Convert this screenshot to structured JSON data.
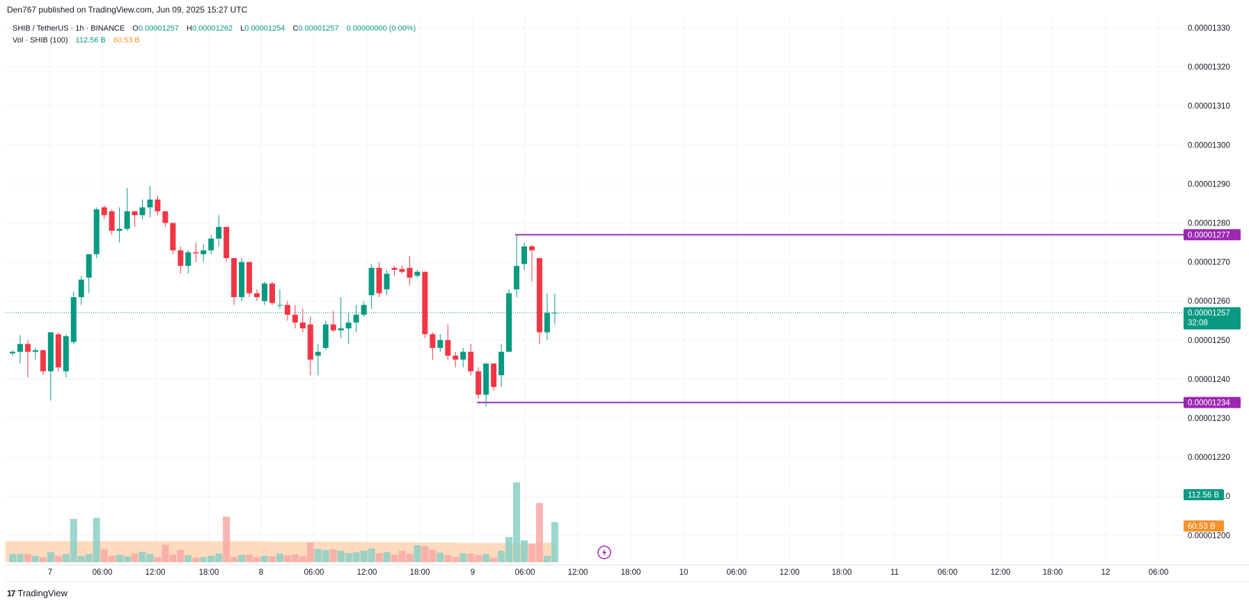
{
  "header": {
    "published_text": "Den767 published on TradingView.com, Jun 09, 2025 15:27 UTC"
  },
  "legend": {
    "symbol": "SHIB / TetherUS · 1h · BINANCE",
    "o_label": "O",
    "o_value": "0.00001257",
    "h_label": "H",
    "h_value": "0.00001262",
    "l_label": "L",
    "l_value": "0.00001254",
    "c_label": "C",
    "c_value": "0.00001257",
    "change": "0.00000000 (0.00%)",
    "vol_label": "Vol · SHIB (100)",
    "vol_value": "112.56 B",
    "vol_ma_value": "60.53 B"
  },
  "brand": {
    "name": "TradingView",
    "logo_glyph": "17"
  },
  "colors": {
    "up": "#089981",
    "down": "#f23645",
    "up_vol": "#8bcfc6",
    "down_vol": "#f7a9a7",
    "vol_ma_fill": "#ffcfa8",
    "level": "#9c27b0",
    "grid": "#f0f3fa",
    "last_price_tag": "#089981",
    "vol_ma_tag": "#f7922b",
    "bolt_icon": "#9c27b0"
  },
  "icons": {
    "bolt": "lightning-bolt-icon"
  },
  "chart_data": {
    "type": "candlestick",
    "symbol": "SHIB / TetherUS",
    "interval": "1h",
    "exchange": "BINANCE",
    "x_axis_labels": [
      "7",
      "06:00",
      "12:00",
      "18:00",
      "8",
      "06:00",
      "12:00",
      "18:00",
      "9",
      "06:00",
      "12:00",
      "18:00",
      "10",
      "06:00",
      "12:00",
      "18:00",
      "11",
      "06:00",
      "12:00",
      "18:00",
      "12",
      "06:00"
    ],
    "y_axis_labels": [
      "0.00001330",
      "0.00001320",
      "0.00001310",
      "0.00001300",
      "0.00001290",
      "0.00001280",
      "0.00001270",
      "0.00001260",
      "0.00001250",
      "0.00001240",
      "0.00001230",
      "0.00001220",
      "0.00001210",
      "0.00001200"
    ],
    "ylim": [
      1.19e-05,
      1.33e-05
    ],
    "grid": true,
    "candles": [
      {
        "o": 1.2466e-05,
        "h": 1.2474e-05,
        "l": 1.246e-05,
        "c": 1.247e-05,
        "v": 18
      },
      {
        "o": 1.247e-05,
        "h": 1.2513e-05,
        "l": 1.244e-05,
        "c": 1.249e-05,
        "v": 18
      },
      {
        "o": 1.249e-05,
        "h": 1.25e-05,
        "l": 1.2405e-05,
        "c": 1.247e-05,
        "v": 18
      },
      {
        "o": 1.247e-05,
        "h": 1.248e-05,
        "l": 1.245e-05,
        "c": 1.2474e-05,
        "v": 14
      },
      {
        "o": 1.2474e-05,
        "h": 1.2475e-05,
        "l": 1.241e-05,
        "c": 1.242e-05,
        "v": 11
      },
      {
        "o": 1.242e-05,
        "h": 1.252e-05,
        "l": 1.2345e-05,
        "c": 1.252e-05,
        "v": 22
      },
      {
        "o": 1.2515e-05,
        "h": 1.252e-05,
        "l": 1.242e-05,
        "c": 1.243e-05,
        "v": 14
      },
      {
        "o": 1.242e-05,
        "h": 1.2515e-05,
        "l": 1.2405e-05,
        "c": 1.251e-05,
        "v": 18
      },
      {
        "o": 1.2495e-05,
        "h": 1.2625e-05,
        "l": 1.249e-05,
        "c": 1.261e-05,
        "v": 95
      },
      {
        "o": 1.261e-05,
        "h": 1.2665e-05,
        "l": 1.259e-05,
        "c": 1.2655e-05,
        "v": 14
      },
      {
        "o": 1.266e-05,
        "h": 1.272e-05,
        "l": 1.262e-05,
        "c": 1.272e-05,
        "v": 18
      },
      {
        "o": 1.272e-05,
        "h": 1.284e-05,
        "l": 1.271e-05,
        "c": 1.2835e-05,
        "v": 97
      },
      {
        "o": 1.284e-05,
        "h": 1.2845e-05,
        "l": 1.281e-05,
        "c": 1.282e-05,
        "v": 28
      },
      {
        "o": 1.283e-05,
        "h": 1.2835e-05,
        "l": 1.277e-05,
        "c": 1.278e-05,
        "v": 14
      },
      {
        "o": 1.278e-05,
        "h": 1.284e-05,
        "l": 1.275e-05,
        "c": 1.2785e-05,
        "v": 16
      },
      {
        "o": 1.2785e-05,
        "h": 1.289e-05,
        "l": 1.278e-05,
        "c": 1.283e-05,
        "v": 13
      },
      {
        "o": 1.283e-05,
        "h": 1.283e-05,
        "l": 1.279e-05,
        "c": 1.282e-05,
        "v": 19
      },
      {
        "o": 1.282e-05,
        "h": 1.286e-05,
        "l": 1.281e-05,
        "c": 1.284e-05,
        "v": 23
      },
      {
        "o": 1.284e-05,
        "h": 1.2895e-05,
        "l": 1.2815e-05,
        "c": 1.286e-05,
        "v": 18
      },
      {
        "o": 1.286e-05,
        "h": 1.287e-05,
        "l": 1.282e-05,
        "c": 1.283e-05,
        "v": 11
      },
      {
        "o": 1.283e-05,
        "h": 1.283e-05,
        "l": 1.279e-05,
        "c": 1.28e-05,
        "v": 38
      },
      {
        "o": 1.28e-05,
        "h": 1.28e-05,
        "l": 1.272e-05,
        "c": 1.273e-05,
        "v": 17
      },
      {
        "o": 1.273e-05,
        "h": 1.274e-05,
        "l": 1.267e-05,
        "c": 1.269e-05,
        "v": 27
      },
      {
        "o": 1.269e-05,
        "h": 1.273e-05,
        "l": 1.267e-05,
        "c": 1.2725e-05,
        "v": 15
      },
      {
        "o": 1.2725e-05,
        "h": 1.275e-05,
        "l": 1.27e-05,
        "c": 1.2722e-05,
        "v": 10
      },
      {
        "o": 1.272e-05,
        "h": 1.2745e-05,
        "l": 1.27e-05,
        "c": 1.273e-05,
        "v": 11
      },
      {
        "o": 1.273e-05,
        "h": 1.277e-05,
        "l": 1.272e-05,
        "c": 1.276e-05,
        "v": 14
      },
      {
        "o": 1.276e-05,
        "h": 1.282e-05,
        "l": 1.274e-05,
        "c": 1.279e-05,
        "v": 19
      },
      {
        "o": 1.279e-05,
        "h": 1.279e-05,
        "l": 1.27e-05,
        "c": 1.271e-05,
        "v": 100
      },
      {
        "o": 1.271e-05,
        "h": 1.271e-05,
        "l": 1.259e-05,
        "c": 1.261e-05,
        "v": 12
      },
      {
        "o": 1.261e-05,
        "h": 1.271e-05,
        "l": 1.26e-05,
        "c": 1.27e-05,
        "v": 16
      },
      {
        "o": 1.27e-05,
        "h": 1.27e-05,
        "l": 1.261e-05,
        "c": 1.262e-05,
        "v": 17
      },
      {
        "o": 1.262e-05,
        "h": 1.263e-05,
        "l": 1.26e-05,
        "c": 1.261e-05,
        "v": 11
      },
      {
        "o": 1.26e-05,
        "h": 1.265e-05,
        "l": 1.259e-05,
        "c": 1.2645e-05,
        "v": 14
      },
      {
        "o": 1.2645e-05,
        "h": 1.265e-05,
        "l": 1.259e-05,
        "c": 1.2595e-05,
        "v": 13
      },
      {
        "o": 1.259e-05,
        "h": 1.263e-05,
        "l": 1.258e-05,
        "c": 1.259e-05,
        "v": 19
      },
      {
        "o": 1.259e-05,
        "h": 1.26e-05,
        "l": 1.255e-05,
        "c": 1.2565e-05,
        "v": 15
      },
      {
        "o": 1.2565e-05,
        "h": 1.259e-05,
        "l": 1.253e-05,
        "c": 1.2545e-05,
        "v": 17
      },
      {
        "o": 1.2545e-05,
        "h": 1.258e-05,
        "l": 1.252e-05,
        "c": 1.253e-05,
        "v": 13
      },
      {
        "o": 1.254e-05,
        "h": 1.256e-05,
        "l": 1.241e-05,
        "c": 1.245e-05,
        "v": 43
      },
      {
        "o": 1.246e-05,
        "h": 1.249e-05,
        "l": 1.241e-05,
        "c": 1.247e-05,
        "v": 29
      },
      {
        "o": 1.248e-05,
        "h": 1.255e-05,
        "l": 1.2475e-05,
        "c": 1.254e-05,
        "v": 26
      },
      {
        "o": 1.254e-05,
        "h": 1.2575e-05,
        "l": 1.252e-05,
        "c": 1.2525e-05,
        "v": 28
      },
      {
        "o": 1.2525e-05,
        "h": 1.261e-05,
        "l": 1.2505e-05,
        "c": 1.253e-05,
        "v": 25
      },
      {
        "o": 1.253e-05,
        "h": 1.257e-05,
        "l": 1.249e-05,
        "c": 1.2545e-05,
        "v": 20
      },
      {
        "o": 1.2545e-05,
        "h": 1.259e-05,
        "l": 1.252e-05,
        "c": 1.2565e-05,
        "v": 22
      },
      {
        "o": 1.2565e-05,
        "h": 1.26e-05,
        "l": 1.256e-05,
        "c": 1.259e-05,
        "v": 25
      },
      {
        "o": 1.2615e-05,
        "h": 1.2695e-05,
        "l": 1.258e-05,
        "c": 1.2685e-05,
        "v": 30
      },
      {
        "o": 1.2685e-05,
        "h": 1.27e-05,
        "l": 1.261e-05,
        "c": 1.262e-05,
        "v": 20
      },
      {
        "o": 1.263e-05,
        "h": 1.268e-05,
        "l": 1.2615e-05,
        "c": 1.267e-05,
        "v": 22
      },
      {
        "o": 1.2685e-05,
        "h": 1.269e-05,
        "l": 1.2665e-05,
        "c": 1.268e-05,
        "v": 16
      },
      {
        "o": 1.2682e-05,
        "h": 1.269e-05,
        "l": 1.267e-05,
        "c": 1.2675e-05,
        "v": 25
      },
      {
        "o": 1.2685e-05,
        "h": 1.2715e-05,
        "l": 1.264e-05,
        "c": 1.266e-05,
        "v": 19
      },
      {
        "o": 1.2665e-05,
        "h": 1.268e-05,
        "l": 1.266e-05,
        "c": 1.2675e-05,
        "v": 37
      },
      {
        "o": 1.2675e-05,
        "h": 1.2675e-05,
        "l": 1.2505e-05,
        "c": 1.2515e-05,
        "v": 35
      },
      {
        "o": 1.2515e-05,
        "h": 1.252e-05,
        "l": 1.245e-05,
        "c": 1.248e-05,
        "v": 27
      },
      {
        "o": 1.248e-05,
        "h": 1.2515e-05,
        "l": 1.247e-05,
        "c": 1.25e-05,
        "v": 21
      },
      {
        "o": 1.25e-05,
        "h": 1.254e-05,
        "l": 1.245e-05,
        "c": 1.246e-05,
        "v": 16
      },
      {
        "o": 1.246e-05,
        "h": 1.247e-05,
        "l": 1.243e-05,
        "c": 1.245e-05,
        "v": 12
      },
      {
        "o": 1.245e-05,
        "h": 1.248e-05,
        "l": 1.243e-05,
        "c": 1.247e-05,
        "v": 19
      },
      {
        "o": 1.247e-05,
        "h": 1.249e-05,
        "l": 1.241e-05,
        "c": 1.242e-05,
        "v": 19
      },
      {
        "o": 1.242e-05,
        "h": 1.243e-05,
        "l": 1.235e-05,
        "c": 1.236e-05,
        "v": 16
      },
      {
        "o": 1.236e-05,
        "h": 1.244e-05,
        "l": 1.233e-05,
        "c": 1.244e-05,
        "v": 18
      },
      {
        "o": 1.244e-05,
        "h": 1.244e-05,
        "l": 1.237e-05,
        "c": 1.238e-05,
        "v": 10
      },
      {
        "o": 1.241e-05,
        "h": 1.249e-05,
        "l": 1.238e-05,
        "c": 1.247e-05,
        "v": 25
      },
      {
        "o": 1.247e-05,
        "h": 1.263e-05,
        "l": 1.247e-05,
        "c": 1.262e-05,
        "v": 55
      },
      {
        "o": 1.263e-05,
        "h": 1.277e-05,
        "l": 1.261e-05,
        "c": 1.269e-05,
        "v": 175
      },
      {
        "o": 1.2695e-05,
        "h": 1.275e-05,
        "l": 1.268e-05,
        "c": 1.274e-05,
        "v": 48
      },
      {
        "o": 1.274e-05,
        "h": 1.2745e-05,
        "l": 1.265e-05,
        "c": 1.273e-05,
        "v": 40
      },
      {
        "o": 1.271e-05,
        "h": 1.271e-05,
        "l": 1.249e-05,
        "c": 1.252e-05,
        "v": 130
      },
      {
        "o": 1.252e-05,
        "h": 1.262e-05,
        "l": 1.25e-05,
        "c": 1.257e-05,
        "v": 14
      },
      {
        "o": 1.257e-05,
        "h": 1.262e-05,
        "l": 1.254e-05,
        "c": 1.257e-05,
        "v": 88
      }
    ],
    "vol_ma": [
      46,
      46,
      46,
      46,
      46,
      46,
      46,
      46,
      46,
      46,
      46,
      46,
      46,
      46,
      46,
      46,
      46,
      46,
      46,
      46,
      46,
      46,
      46,
      46,
      46,
      46,
      46,
      46,
      46,
      46,
      46,
      46,
      46,
      46,
      45,
      45,
      45,
      45,
      45,
      45,
      45,
      45,
      45,
      45,
      45,
      45,
      44,
      44,
      44,
      44,
      44,
      44,
      44,
      43,
      43,
      43,
      43,
      43,
      43,
      42,
      42,
      42,
      42,
      42,
      42,
      42,
      42,
      42,
      42,
      43,
      43,
      43
    ],
    "levels": [
      {
        "price": 1.277e-05,
        "label": "0.00001277",
        "start_index": 66
      },
      {
        "price": 1.234e-05,
        "label": "0.00001234",
        "start_index": 61
      }
    ],
    "last_price": {
      "price": 1.257e-05,
      "label": "0.00001257",
      "countdown": "32:08"
    },
    "volume_tags": [
      {
        "label": "112.56 B",
        "kind": "volume"
      },
      {
        "label": "60.53 B",
        "kind": "volume_ma"
      }
    ]
  }
}
